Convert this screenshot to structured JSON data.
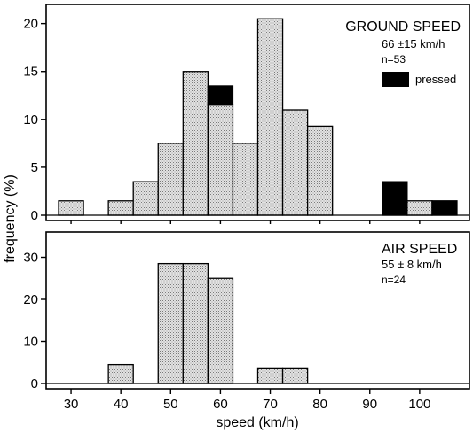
{
  "chart_data": [
    {
      "type": "bar",
      "histogram": true,
      "bin_width": 5,
      "x": [
        30,
        40,
        45,
        50,
        55,
        60,
        65,
        70,
        75,
        80,
        95,
        100,
        105
      ],
      "series": [
        {
          "values": [
            1.5,
            1.5,
            3.5,
            7.5,
            15,
            11.5,
            7.5,
            20.5,
            11,
            9.3,
            0,
            1.5,
            0
          ]
        },
        {
          "name": "pressed",
          "values": [
            0,
            0,
            0,
            0,
            0,
            2,
            0,
            0,
            0,
            0,
            3.5,
            0,
            1.5
          ]
        }
      ],
      "xlim": [
        25,
        110
      ],
      "ylim": [
        0,
        22
      ],
      "yticks": [
        0,
        5,
        10,
        15,
        20
      ],
      "annotations": [
        "GROUND SPEED",
        "66 ±15 km/h",
        "n=53"
      ],
      "legend": {
        "label": "pressed",
        "placement": "top-right"
      },
      "grid": false
    },
    {
      "type": "bar",
      "histogram": true,
      "bin_width": 5,
      "x": [
        40,
        50,
        55,
        60,
        70,
        75
      ],
      "values": [
        4.5,
        28.5,
        28.5,
        25,
        3.5,
        3.5
      ],
      "xlim": [
        25,
        110
      ],
      "ylim": [
        0,
        36
      ],
      "yticks": [
        0,
        10,
        20,
        30
      ],
      "xticks": [
        30,
        40,
        50,
        60,
        70,
        80,
        90,
        100
      ],
      "xlabel": "speed (km/h)",
      "annotations": [
        "AIR SPEED",
        "55 ± 8 km/h",
        "n=24"
      ],
      "grid": false
    }
  ],
  "shared_ylabel": "frequency (%)",
  "colors": {
    "fill": "#d0d0d0",
    "pressed": "#000000",
    "outline": "#000000"
  }
}
